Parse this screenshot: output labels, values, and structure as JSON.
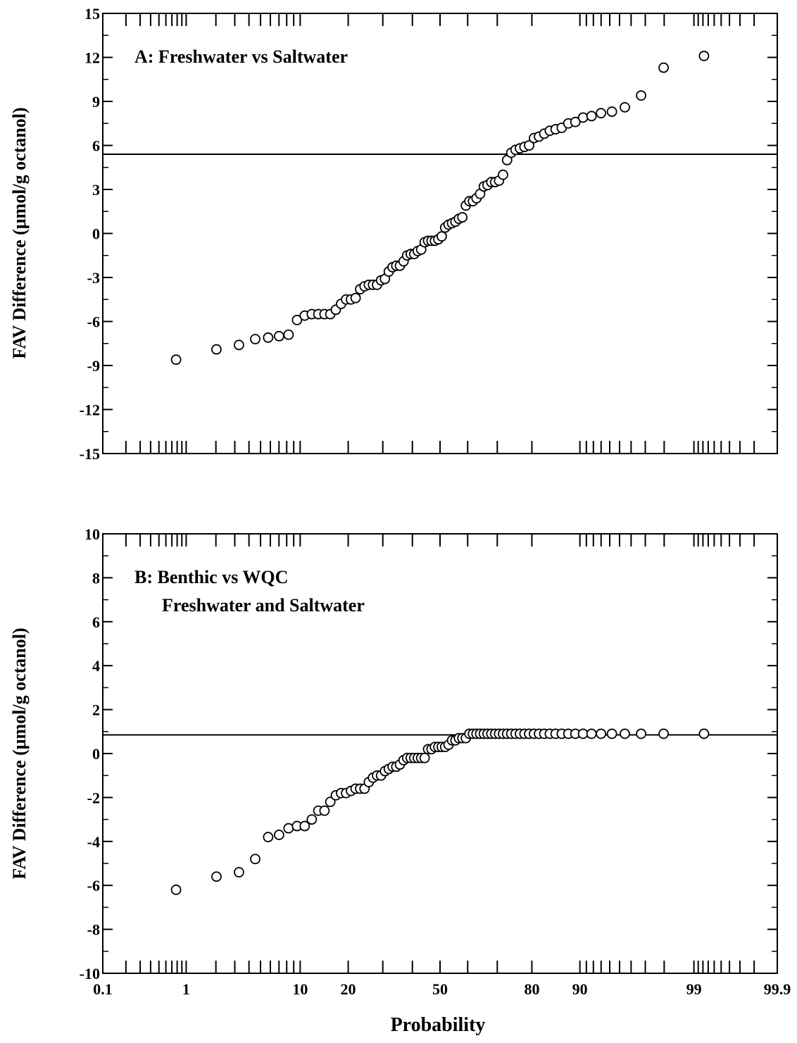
{
  "figure": {
    "xlabel": "Probability",
    "x_ticks": [
      0.1,
      1,
      10,
      20,
      50,
      80,
      90,
      99,
      99.9
    ],
    "x_tick_labels": [
      "0.1",
      "1",
      "10",
      "20",
      "50",
      "80",
      "90",
      "99",
      "99.9"
    ]
  },
  "chart_data": [
    {
      "type": "scatter",
      "panel": "A",
      "annotation": [
        "A: Freshwater vs Saltwater"
      ],
      "xlabel": "Probability",
      "ylabel": "FAV Difference (μmol/g octanol)",
      "x_scale": "normal-probability",
      "xlim": [
        0.1,
        99.9
      ],
      "ylim": [
        -15,
        15
      ],
      "y_ticks": [
        -15,
        -12,
        -9,
        -6,
        -3,
        0,
        3,
        6,
        9,
        12,
        15
      ],
      "y_tick_labels": [
        "-15",
        "-12",
        "-9",
        "-6",
        "-3",
        "0",
        "3",
        "6",
        "9",
        "12",
        "15"
      ],
      "reference_line_y": 5.4,
      "grid": false,
      "series": [
        {
          "values": [
            -8.6,
            -7.9,
            -7.6,
            -7.2,
            -7.1,
            -7.0,
            -6.9,
            -5.9,
            -5.6,
            -5.5,
            -5.5,
            -5.5,
            -5.5,
            -5.2,
            -4.8,
            -4.5,
            -4.5,
            -4.4,
            -3.8,
            -3.6,
            -3.5,
            -3.5,
            -3.5,
            -3.2,
            -3.1,
            -2.6,
            -2.3,
            -2.2,
            -2.2,
            -1.9,
            -1.5,
            -1.4,
            -1.4,
            -1.2,
            -1.1,
            -0.6,
            -0.5,
            -0.5,
            -0.5,
            -0.4,
            -0.2,
            0.4,
            0.6,
            0.7,
            0.8,
            1.0,
            1.1,
            1.9,
            2.2,
            2.2,
            2.4,
            2.7,
            3.2,
            3.3,
            3.5,
            3.5,
            3.6,
            4.0,
            5.0,
            5.5,
            5.7,
            5.8,
            5.9,
            6.0,
            6.5,
            6.6,
            6.8,
            7.0,
            7.1,
            7.2,
            7.5,
            7.6,
            7.9,
            8.0,
            8.2,
            8.3,
            8.6,
            9.4,
            11.3,
            12.1
          ]
        }
      ]
    },
    {
      "type": "scatter",
      "panel": "B",
      "annotation": [
        "B: Benthic vs WQC",
        "Freshwater and Saltwater"
      ],
      "xlabel": "Probability",
      "ylabel": "FAV Difference (μmol/g octanol)",
      "x_scale": "normal-probability",
      "xlim": [
        0.1,
        99.9
      ],
      "ylim": [
        -10,
        10
      ],
      "y_ticks": [
        -10,
        -8,
        -6,
        -4,
        -2,
        0,
        2,
        4,
        6,
        8,
        10
      ],
      "y_tick_labels": [
        "-10",
        "-8",
        "-6",
        "-4",
        "-2",
        "0",
        "2",
        "4",
        "6",
        "8",
        "10"
      ],
      "reference_line_y": 0.85,
      "grid": false,
      "series": [
        {
          "values": [
            -6.2,
            -5.6,
            -5.4,
            -4.8,
            -3.8,
            -3.7,
            -3.4,
            -3.3,
            -3.3,
            -3.0,
            -2.6,
            -2.6,
            -2.2,
            -1.9,
            -1.8,
            -1.8,
            -1.7,
            -1.6,
            -1.6,
            -1.6,
            -1.3,
            -1.1,
            -1.0,
            -1.0,
            -0.8,
            -0.7,
            -0.6,
            -0.6,
            -0.5,
            -0.3,
            -0.2,
            -0.2,
            -0.2,
            -0.2,
            -0.2,
            -0.2,
            0.2,
            0.2,
            0.3,
            0.3,
            0.3,
            0.3,
            0.4,
            0.6,
            0.6,
            0.7,
            0.7,
            0.7,
            0.9,
            0.9,
            0.9,
            0.9,
            0.9,
            0.9,
            0.9,
            0.9,
            0.9,
            0.9,
            0.9,
            0.9,
            0.9,
            0.9,
            0.9,
            0.9,
            0.9,
            0.9,
            0.9,
            0.9,
            0.9,
            0.9,
            0.9,
            0.9,
            0.9,
            0.9,
            0.9,
            0.9,
            0.9,
            0.9,
            0.9,
            0.9
          ]
        }
      ]
    }
  ]
}
